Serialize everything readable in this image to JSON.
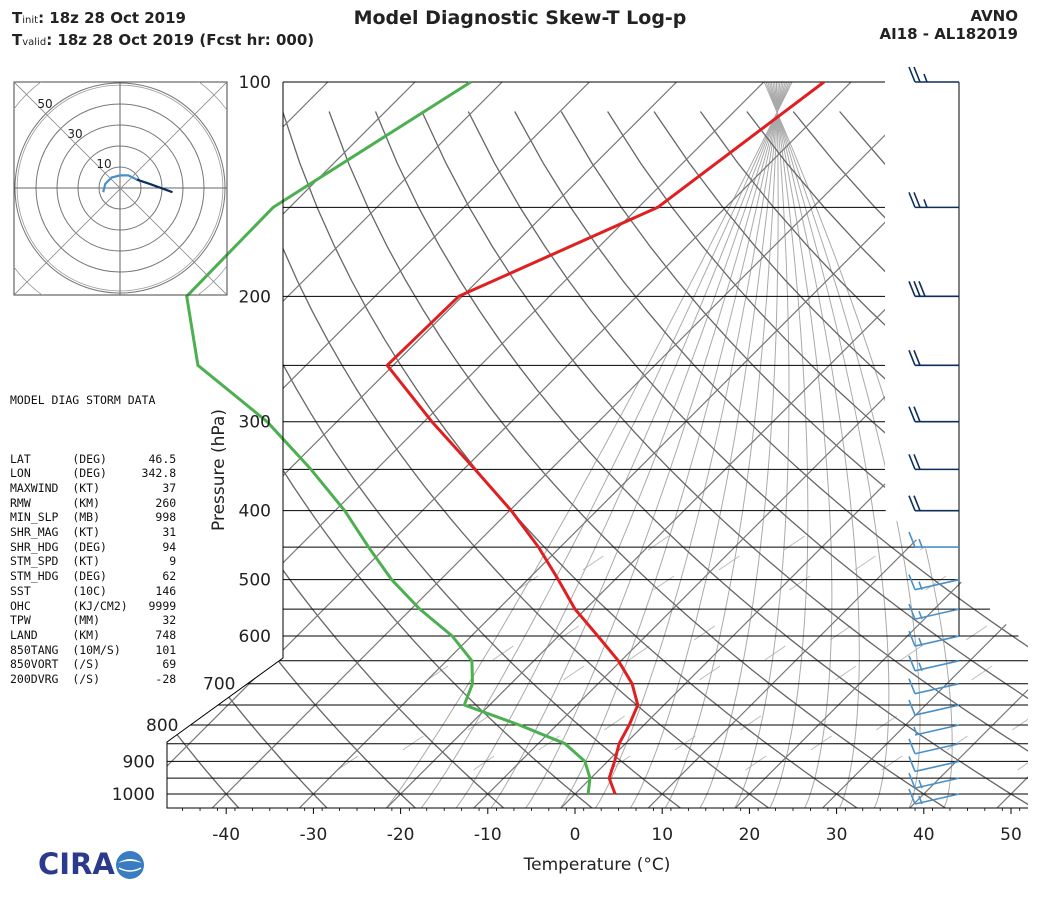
{
  "header": {
    "title": "Model Diagnostic Skew-T Log-p",
    "tinit_label": "T",
    "tinit_sub": "init",
    "tinit_value": ":  18z 28 Oct 2019",
    "tvalid_label": "T",
    "tvalid_sub": "valid",
    "tvalid_value": ": 18z 28 Oct 2019 (Fcst hr: 000)",
    "model": "AVNO",
    "storm_id": "AI18 - AL182019"
  },
  "storm_data": {
    "title": "MODEL DIAG STORM DATA",
    "rows": [
      {
        "name": "LAT",
        "unit": "(DEG)",
        "value": "46.5"
      },
      {
        "name": "LON",
        "unit": "(DEG)",
        "value": "342.8"
      },
      {
        "name": "MAXWIND",
        "unit": "(KT)",
        "value": "37"
      },
      {
        "name": "RMW",
        "unit": "(KM)",
        "value": "260"
      },
      {
        "name": "MIN_SLP",
        "unit": "(MB)",
        "value": "998"
      },
      {
        "name": "SHR_MAG",
        "unit": "(KT)",
        "value": "31"
      },
      {
        "name": "SHR_HDG",
        "unit": "(DEG)",
        "value": "94"
      },
      {
        "name": "STM_SPD",
        "unit": "(KT)",
        "value": "9"
      },
      {
        "name": "STM_HDG",
        "unit": "(DEG)",
        "value": "62"
      },
      {
        "name": "SST",
        "unit": "(10C)",
        "value": "146"
      },
      {
        "name": "OHC",
        "unit": "(KJ/CM2)",
        "value": "9999"
      },
      {
        "name": "TPW",
        "unit": "(MM)",
        "value": "32"
      },
      {
        "name": "LAND",
        "unit": "(KM)",
        "value": "748"
      },
      {
        "name": "850TANG",
        "unit": "(10M/S)",
        "value": "101"
      },
      {
        "name": "850VORT",
        "unit": "(/S)",
        "value": "69"
      },
      {
        "name": "200DVRG",
        "unit": "(/S)",
        "value": "-28"
      }
    ]
  },
  "colors": {
    "temperature": "#e02020",
    "dewpoint": "#4caf50",
    "isobar": "#000000",
    "dry_adiabat": "#666666",
    "moist_adiabat": "#aaaaaa",
    "mixing_ratio": "#bbbbbb",
    "barb_upper": "#0d2f5e",
    "barb_lower": "#4a90c8",
    "hodograph_line": "#4a90c8"
  },
  "chart_data": [
    {
      "type": "line",
      "title": "Model Diagnostic Skew-T Log-p",
      "xlabel": "Temperature (°C)",
      "ylabel": "Pressure (hPa)",
      "xlim": [
        -46,
        52
      ],
      "ylim": [
        1050,
        100
      ],
      "yscale": "log",
      "skew": "isotherms tilted 45°",
      "x_ticks": [
        -40,
        -30,
        -20,
        -10,
        0,
        10,
        20,
        30,
        40,
        50
      ],
      "x_tick_labels": [
        "-40",
        "-30",
        "-20",
        "-10",
        "0",
        "10",
        "20",
        "30",
        "40",
        "50"
      ],
      "y_ticks": [
        100,
        200,
        300,
        400,
        500,
        600,
        700,
        800,
        900,
        1000
      ],
      "y_tick_labels": [
        "100",
        "200",
        "300",
        "400",
        "500",
        "600",
        "700",
        "800",
        "900",
        "1000"
      ],
      "isobar_levels": [
        100,
        150,
        200,
        250,
        300,
        350,
        400,
        450,
        500,
        550,
        600,
        650,
        700,
        750,
        800,
        850,
        900,
        950,
        1000
      ],
      "series": [
        {
          "name": "Temperature",
          "pressure": [
            100,
            150,
            200,
            250,
            300,
            350,
            400,
            450,
            500,
            550,
            600,
            650,
            700,
            750,
            800,
            850,
            900,
            950,
            1000
          ],
          "values": [
            -53.1,
            -57.8,
            -70.4,
            -70.7,
            -59.1,
            -48.7,
            -39.8,
            -32.5,
            -26.5,
            -21.2,
            -15.5,
            -10.3,
            -6.1,
            -3.0,
            -1.7,
            -0.7,
            0.8,
            2.1,
            4.6
          ]
        },
        {
          "name": "Dewpoint",
          "pressure": [
            100,
            150,
            200,
            250,
            300,
            350,
            400,
            450,
            500,
            550,
            600,
            650,
            700,
            750,
            800,
            850,
            900,
            950,
            1000
          ],
          "values": [
            -93.6,
            -101.9,
            -101.6,
            -92.4,
            -78.0,
            -67.5,
            -58.9,
            -52.0,
            -45.6,
            -39.0,
            -32.2,
            -27.1,
            -24.4,
            -22.9,
            -14.3,
            -6.9,
            -2.6,
            -0.1,
            1.5
          ]
        }
      ],
      "wind_barbs": [
        {
          "pressure": 100,
          "speed_kt": 25
        },
        {
          "pressure": 150,
          "speed_kt": 25
        },
        {
          "pressure": 200,
          "speed_kt": 30
        },
        {
          "pressure": 250,
          "speed_kt": 20
        },
        {
          "pressure": 300,
          "speed_kt": 20
        },
        {
          "pressure": 350,
          "speed_kt": 20
        },
        {
          "pressure": 400,
          "speed_kt": 20
        },
        {
          "pressure": 450,
          "speed_kt": 15
        },
        {
          "pressure": 500,
          "speed_kt": 15
        },
        {
          "pressure": 550,
          "speed_kt": 15
        },
        {
          "pressure": 600,
          "speed_kt": 15
        },
        {
          "pressure": 650,
          "speed_kt": 15
        },
        {
          "pressure": 700,
          "speed_kt": 10
        },
        {
          "pressure": 750,
          "speed_kt": 10
        },
        {
          "pressure": 800,
          "speed_kt": 5
        },
        {
          "pressure": 850,
          "speed_kt": 10
        },
        {
          "pressure": 900,
          "speed_kt": 10
        },
        {
          "pressure": 950,
          "speed_kt": 15
        },
        {
          "pressure": 1000,
          "speed_kt": 15
        }
      ]
    },
    {
      "type": "scatter",
      "title": "Hodograph",
      "ring_labels": [
        "10",
        "30",
        "50"
      ],
      "rings_kt": [
        10,
        20,
        30,
        40,
        50
      ],
      "xlim": [
        -50,
        50
      ],
      "ylim": [
        -50,
        50
      ],
      "series": [
        {
          "name": "lower",
          "u": [
            -8,
            -7,
            -4,
            0,
            4,
            8
          ],
          "v": [
            -2,
            2,
            5,
            6,
            6,
            4
          ]
        },
        {
          "name": "upper",
          "u": [
            8,
            14,
            25
          ],
          "v": [
            4,
            2,
            -2
          ]
        }
      ]
    }
  ],
  "logo": {
    "text": "CIRA"
  }
}
